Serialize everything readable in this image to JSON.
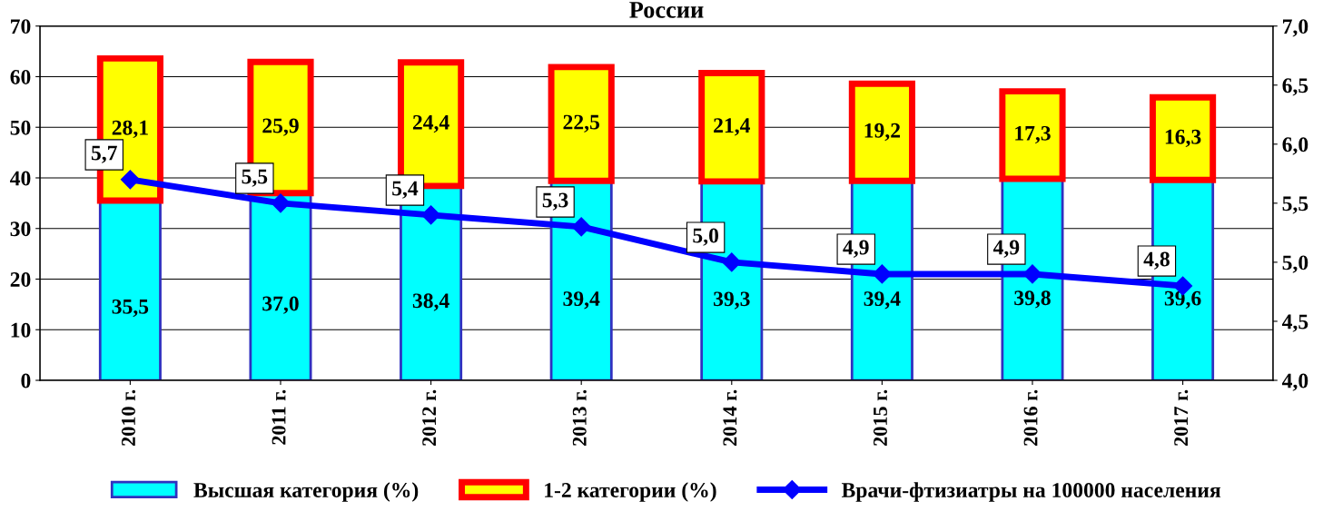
{
  "chart_data": {
    "type": "bar",
    "title": "России",
    "stacked": true,
    "categories": [
      "2010 г.",
      "2011 г.",
      "2012 г.",
      "2013 г.",
      "2014 г.",
      "2015 г.",
      "2016 г.",
      "2017 г."
    ],
    "series": [
      {
        "name": "Высшая категория (%)",
        "color": "#00ffff",
        "values": [
          35.5,
          37.0,
          38.4,
          39.4,
          39.3,
          39.4,
          39.8,
          39.6
        ],
        "value_labels": [
          "35,5",
          "37,0",
          "38,4",
          "39,4",
          "39,3",
          "39,4",
          "39,8",
          "39,6"
        ]
      },
      {
        "name": "1-2 категории (%)",
        "color": "#ffff00",
        "values": [
          28.1,
          25.9,
          24.4,
          22.5,
          21.4,
          19.2,
          17.3,
          16.3
        ],
        "value_labels": [
          "28,1",
          "25,9",
          "24,4",
          "22,5",
          "21,4",
          "19,2",
          "17,3",
          "16,3"
        ]
      },
      {
        "name": "Врачи-фтизиатры на 100000 населения",
        "type": "line",
        "axis": "y2",
        "color": "#0000ff",
        "marker": "diamond",
        "values": [
          5.7,
          5.5,
          5.4,
          5.3,
          5.0,
          4.9,
          4.9,
          4.8
        ],
        "value_labels": [
          "5,7",
          "5,5",
          "5,4",
          "5,3",
          "5,0",
          "4,9",
          "4,9",
          "4,8"
        ]
      }
    ],
    "ylim": [
      0,
      70
    ],
    "yticks": [
      0,
      10,
      20,
      30,
      40,
      50,
      60,
      70
    ],
    "y2lim": [
      4.0,
      7.0
    ],
    "y2ticks": [
      {
        "value": 4.0,
        "label": "4,0"
      },
      {
        "value": 4.5,
        "label": "4,5"
      },
      {
        "value": 5.0,
        "label": "5,0"
      },
      {
        "value": 5.5,
        "label": "5,5"
      },
      {
        "value": 6.0,
        "label": "6,0"
      },
      {
        "value": 6.5,
        "label": "6,5"
      },
      {
        "value": 7.0,
        "label": "7,0"
      }
    ],
    "grid": "y",
    "legend": "bottom"
  }
}
